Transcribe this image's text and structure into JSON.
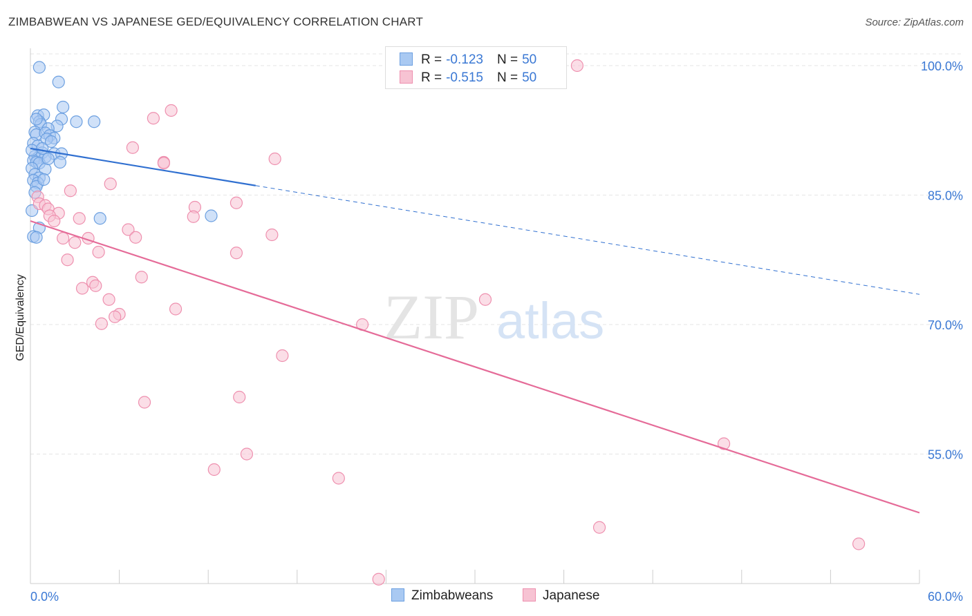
{
  "header": {
    "title": "ZIMBABWEAN VS JAPANESE GED/EQUIVALENCY CORRELATION CHART",
    "source": "Source: ZipAtlas.com"
  },
  "legend_top": {
    "rows": [
      {
        "r_label": "R =",
        "r_value": "-0.123",
        "n_label": "N =",
        "n_value": "50"
      },
      {
        "r_label": "R =",
        "r_value": "-0.515",
        "n_label": "N =",
        "n_value": "50"
      }
    ]
  },
  "legend_bottom": {
    "items": [
      {
        "label": "Zimbabweans"
      },
      {
        "label": "Japanese"
      }
    ]
  },
  "watermark": {
    "zip": "ZIP",
    "atlas": "atlas"
  },
  "colors": {
    "zimbabwean_fill": "#a9c9f2",
    "zimbabwean_stroke": "#6b9fe0",
    "zimbabwean_line": "#2f6fd0",
    "japanese_fill": "#f7c3d3",
    "japanese_stroke": "#ee8fae",
    "japanese_line": "#e56b98",
    "axis_text": "#3a78d4",
    "grid": "#e5e5e5"
  },
  "chart_data": {
    "type": "scatter",
    "title": "ZIMBABWEAN VS JAPANESE GED/EQUIVALENCY CORRELATION CHART",
    "xlabel": "",
    "ylabel": "GED/Equivalency",
    "xlim": [
      0,
      60
    ],
    "ylim": [
      40,
      102
    ],
    "x_tick_labels": [
      "0.0%",
      "60.0%"
    ],
    "y_ticks": [
      55,
      70,
      85,
      100
    ],
    "y_tick_labels": [
      "55.0%",
      "70.0%",
      "85.0%",
      "100.0%"
    ],
    "grid": true,
    "series": [
      {
        "name": "Zimbabweans",
        "r": -0.123,
        "n": 50,
        "trend": {
          "x0": 0,
          "y0": 90.4,
          "x1": 15.2,
          "y1": 86.1,
          "dashed_to_x": 60,
          "dashed_to_y": 73.5
        },
        "points": [
          [
            0.6,
            99.8
          ],
          [
            1.9,
            98.1
          ],
          [
            2.2,
            95.2
          ],
          [
            0.5,
            94.2
          ],
          [
            0.9,
            94.3
          ],
          [
            2.1,
            93.8
          ],
          [
            3.1,
            93.5
          ],
          [
            4.3,
            93.5
          ],
          [
            0.6,
            93.5
          ],
          [
            0.7,
            93.2
          ],
          [
            1.8,
            93.0
          ],
          [
            1.2,
            92.7
          ],
          [
            0.3,
            92.3
          ],
          [
            0.4,
            92.0
          ],
          [
            1.0,
            92.2
          ],
          [
            1.3,
            91.9
          ],
          [
            1.6,
            91.6
          ],
          [
            1.1,
            91.5
          ],
          [
            1.4,
            91.2
          ],
          [
            0.2,
            91.0
          ],
          [
            0.5,
            90.7
          ],
          [
            0.8,
            89.9
          ],
          [
            1.6,
            89.8
          ],
          [
            2.1,
            89.8
          ],
          [
            0.3,
            89.5
          ],
          [
            0.5,
            89.3
          ],
          [
            1.0,
            89.4
          ],
          [
            0.2,
            89.0
          ],
          [
            0.4,
            88.8
          ],
          [
            0.6,
            88.7
          ],
          [
            2.0,
            88.8
          ],
          [
            0.1,
            88.1
          ],
          [
            1.0,
            88.0
          ],
          [
            0.3,
            87.4
          ],
          [
            0.6,
            87.0
          ],
          [
            0.2,
            86.7
          ],
          [
            0.5,
            86.4
          ],
          [
            0.4,
            86.0
          ],
          [
            0.1,
            83.2
          ],
          [
            4.7,
            82.3
          ],
          [
            12.2,
            82.6
          ],
          [
            0.6,
            81.2
          ],
          [
            0.2,
            80.2
          ],
          [
            0.4,
            80.1
          ],
          [
            0.3,
            85.3
          ],
          [
            0.9,
            86.8
          ],
          [
            0.1,
            90.2
          ],
          [
            0.8,
            90.4
          ],
          [
            1.2,
            89.2
          ],
          [
            0.4,
            93.8
          ]
        ]
      },
      {
        "name": "Japanese",
        "r": -0.515,
        "n": 50,
        "trend": {
          "x0": 0,
          "y0": 82.0,
          "x1": 60,
          "y1": 48.2
        },
        "points": [
          [
            36.9,
            100.0
          ],
          [
            9.5,
            94.8
          ],
          [
            8.3,
            93.9
          ],
          [
            6.9,
            90.5
          ],
          [
            16.5,
            89.2
          ],
          [
            9.0,
            88.8
          ],
          [
            9.0,
            88.7
          ],
          [
            5.4,
            86.3
          ],
          [
            2.7,
            85.5
          ],
          [
            0.5,
            84.8
          ],
          [
            0.6,
            84.0
          ],
          [
            1.0,
            83.8
          ],
          [
            1.2,
            83.4
          ],
          [
            13.9,
            84.1
          ],
          [
            11.1,
            83.6
          ],
          [
            1.9,
            82.9
          ],
          [
            1.3,
            82.6
          ],
          [
            3.3,
            82.3
          ],
          [
            11.0,
            82.5
          ],
          [
            1.6,
            82.0
          ],
          [
            6.6,
            81.0
          ],
          [
            16.3,
            80.4
          ],
          [
            7.1,
            80.1
          ],
          [
            2.2,
            80.0
          ],
          [
            3.9,
            80.0
          ],
          [
            3.0,
            79.5
          ],
          [
            4.6,
            78.4
          ],
          [
            13.9,
            78.3
          ],
          [
            2.5,
            77.5
          ],
          [
            7.5,
            75.5
          ],
          [
            4.2,
            74.9
          ],
          [
            4.4,
            74.5
          ],
          [
            3.5,
            74.2
          ],
          [
            5.3,
            72.9
          ],
          [
            30.7,
            72.9
          ],
          [
            9.8,
            71.8
          ],
          [
            6.0,
            71.2
          ],
          [
            5.7,
            70.9
          ],
          [
            4.8,
            70.1
          ],
          [
            22.4,
            70.0
          ],
          [
            17.0,
            66.4
          ],
          [
            7.7,
            61.0
          ],
          [
            14.1,
            61.6
          ],
          [
            46.8,
            56.2
          ],
          [
            14.6,
            55.0
          ],
          [
            12.4,
            53.2
          ],
          [
            20.8,
            52.2
          ],
          [
            38.4,
            46.5
          ],
          [
            55.9,
            44.6
          ],
          [
            23.5,
            40.5
          ]
        ]
      }
    ]
  }
}
